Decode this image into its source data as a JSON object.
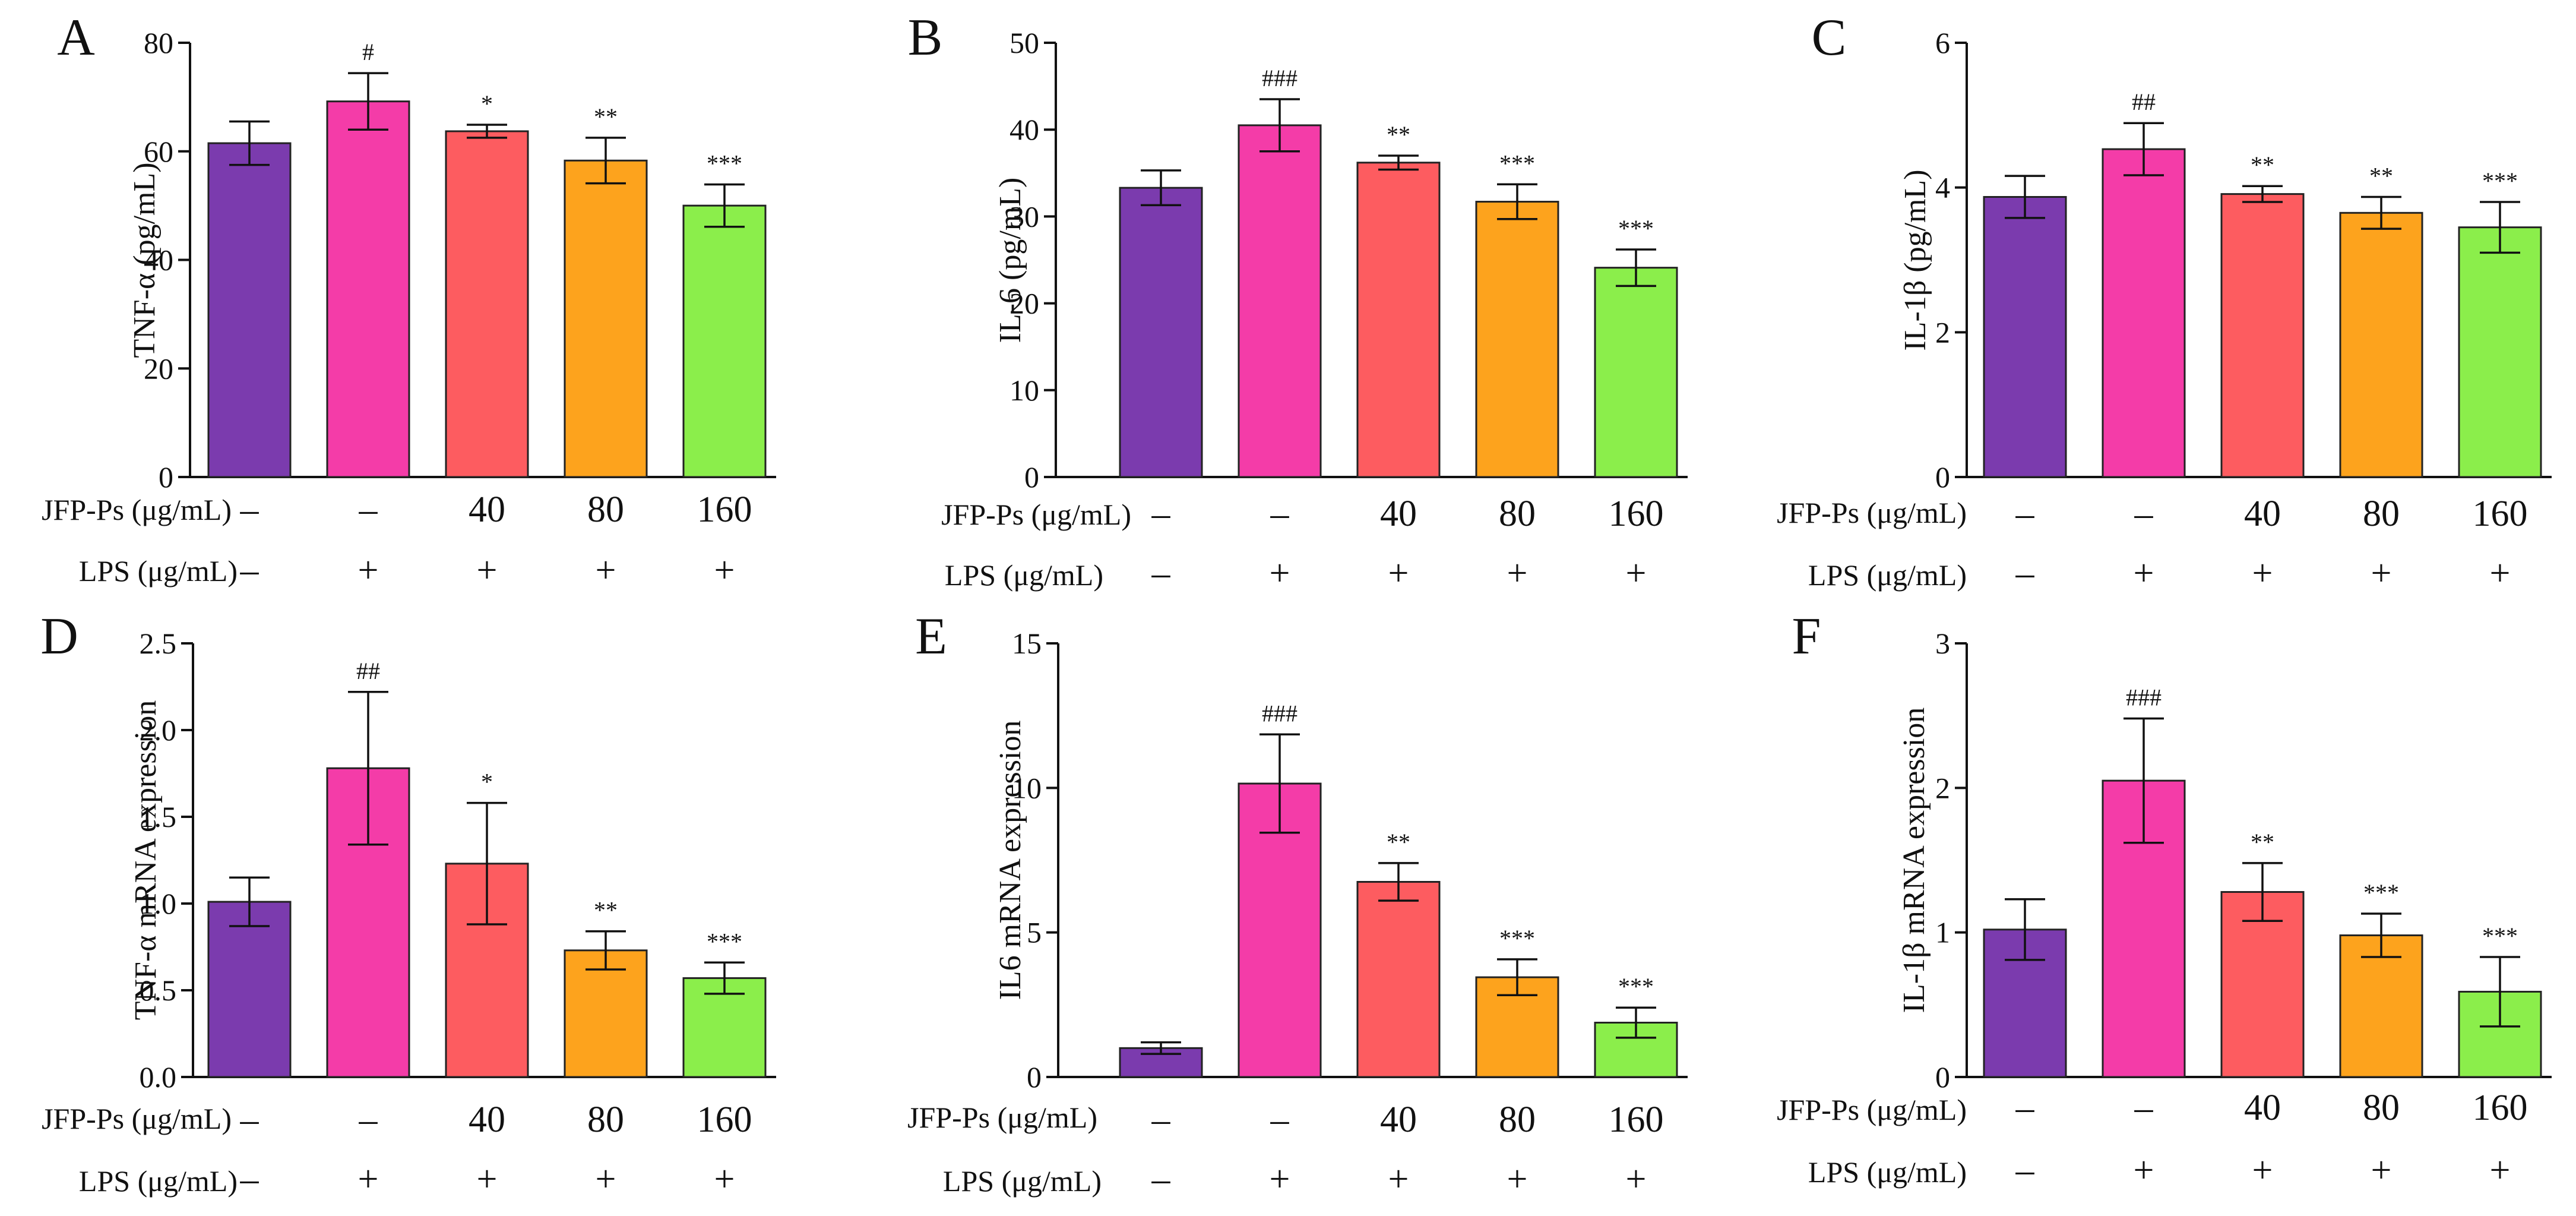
{
  "colors": [
    "#7B3BAE",
    "#F43CA8",
    "#FD5C60",
    "#FDA31D",
    "#8BEE4B"
  ],
  "treatments": {
    "jfp_label": "JFP-Ps (μg/mL)",
    "lps_label": "LPS (μg/mL)",
    "jfp_values": [
      "–",
      "–",
      "40",
      "80",
      "160"
    ],
    "lps_values": [
      "–",
      "+",
      "+",
      "+",
      "+"
    ]
  },
  "chart_data": [
    {
      "type": "bar",
      "panel": "A",
      "ylabel": "TNF-α (pg/mL)",
      "ylim": [
        0,
        80
      ],
      "yticks": [
        0,
        20,
        40,
        60,
        80
      ],
      "ytick_labels": [
        "0",
        "20",
        "40",
        "60",
        "80"
      ],
      "values": [
        61.5,
        69.2,
        63.7,
        58.3,
        50.0
      ],
      "errors": [
        4.0,
        5.2,
        1.2,
        4.2,
        3.9
      ],
      "significance": [
        "",
        "#",
        "*",
        "**",
        "***"
      ]
    },
    {
      "type": "bar",
      "panel": "B",
      "ylabel": "IL-6 (pg/mL)",
      "ylim": [
        0,
        50
      ],
      "yticks": [
        0,
        10,
        20,
        30,
        40,
        50
      ],
      "ytick_labels": [
        "0",
        "10",
        "20",
        "30",
        "40",
        "50"
      ],
      "values": [
        33.3,
        40.5,
        36.2,
        31.7,
        24.1
      ],
      "errors": [
        2.0,
        3.0,
        0.8,
        2.0,
        2.1
      ],
      "significance": [
        "",
        "###",
        "**",
        "***",
        "***"
      ]
    },
    {
      "type": "bar",
      "panel": "C",
      "ylabel": "IL-1β (pg/mL)",
      "ylim": [
        0,
        6
      ],
      "yticks": [
        0,
        2,
        4,
        6
      ],
      "ytick_labels": [
        "0",
        "2",
        "4",
        "6"
      ],
      "values": [
        3.87,
        4.53,
        3.91,
        3.65,
        3.45
      ],
      "errors": [
        0.29,
        0.36,
        0.11,
        0.22,
        0.35
      ],
      "significance": [
        "",
        "##",
        "**",
        "**",
        "***"
      ]
    },
    {
      "type": "bar",
      "panel": "D",
      "ylabel": "TNF-α mRNA expression",
      "ylim": [
        0,
        2.5
      ],
      "yticks": [
        0,
        0.5,
        1.0,
        1.5,
        2.0,
        2.5
      ],
      "ytick_labels": [
        "0.0",
        "0.5",
        "1.0",
        "1.5",
        "2.0",
        "2.5"
      ],
      "values": [
        1.01,
        1.78,
        1.23,
        0.73,
        0.57
      ],
      "errors": [
        0.14,
        0.44,
        0.35,
        0.11,
        0.09
      ],
      "significance": [
        "",
        "##",
        "*",
        "**",
        "***"
      ]
    },
    {
      "type": "bar",
      "panel": "E",
      "ylabel": "IL6 mRNA expression",
      "ylim": [
        0,
        15
      ],
      "yticks": [
        0,
        5,
        10,
        15
      ],
      "ytick_labels": [
        "0",
        "5",
        "10",
        "15"
      ],
      "values": [
        1.0,
        10.15,
        6.75,
        3.45,
        1.88
      ],
      "errors": [
        0.2,
        1.7,
        0.65,
        0.62,
        0.52
      ],
      "significance": [
        "",
        "###",
        "**",
        "***",
        "***"
      ]
    },
    {
      "type": "bar",
      "panel": "F",
      "ylabel": "IL-1β mRNA expression",
      "ylim": [
        0,
        3
      ],
      "yticks": [
        0,
        1,
        2,
        3
      ],
      "ytick_labels": [
        "0",
        "1",
        "2",
        "3"
      ],
      "values": [
        1.02,
        2.05,
        1.28,
        0.98,
        0.59
      ],
      "errors": [
        0.21,
        0.43,
        0.2,
        0.15,
        0.24
      ],
      "significance": [
        "",
        "###",
        "**",
        "***",
        "***"
      ]
    }
  ]
}
